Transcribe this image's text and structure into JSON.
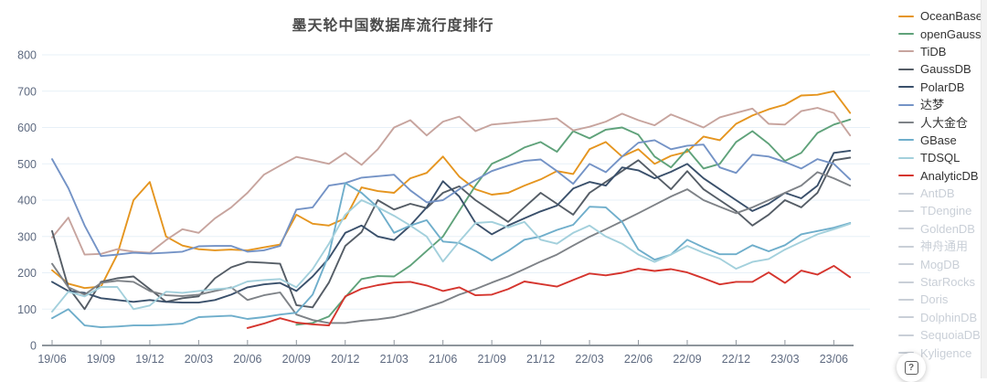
{
  "help": {
    "icon": "?"
  },
  "style": {
    "grid_color": "#e7f0f7",
    "axis_color": "#8e959c",
    "axis_label_color": "#5e6a80",
    "title_color": "#4a4a4a",
    "active_label_color": "#333333",
    "inactive_label_color": "#c9cfd7",
    "background": "#ffffff"
  },
  "legend": {
    "items": [
      {
        "label": "OceanBase",
        "slug": "oceanbase",
        "color": "#e5951f",
        "active": true
      },
      {
        "label": "openGauss",
        "slug": "opengauss",
        "color": "#5fa27a",
        "active": true
      },
      {
        "label": "TiDB",
        "slug": "tidb",
        "color": "#c7a49e",
        "active": true
      },
      {
        "label": "GaussDB",
        "slug": "gaussdb",
        "color": "#555d66",
        "active": true
      },
      {
        "label": "PolarDB",
        "slug": "polardb",
        "color": "#3a506b",
        "active": true
      },
      {
        "label": "达梦",
        "slug": "dameng",
        "color": "#7493c6",
        "active": true
      },
      {
        "label": "人大金仓",
        "slug": "renda-jincang",
        "color": "#7e8287",
        "active": true
      },
      {
        "label": "GBase",
        "slug": "gbase",
        "color": "#6faecb",
        "active": true
      },
      {
        "label": "TDSQL",
        "slug": "tdsql",
        "color": "#a3d0dc",
        "active": true
      },
      {
        "label": "AnalyticDB",
        "slug": "analyticdb",
        "color": "#d5352e",
        "active": true
      },
      {
        "label": "AntDB",
        "slug": "antdb",
        "color": "#c9cfd7",
        "active": false
      },
      {
        "label": "TDengine",
        "slug": "tdengine",
        "color": "#c9cfd7",
        "active": false
      },
      {
        "label": "GoldenDB",
        "slug": "goldendb",
        "color": "#c9cfd7",
        "active": false
      },
      {
        "label": "神舟通用",
        "slug": "shenzhou-tongyong",
        "color": "#c9cfd7",
        "active": false
      },
      {
        "label": "MogDB",
        "slug": "mogdb",
        "color": "#c9cfd7",
        "active": false
      },
      {
        "label": "StarRocks",
        "slug": "starrocks",
        "color": "#c9cfd7",
        "active": false
      },
      {
        "label": "Doris",
        "slug": "doris",
        "color": "#c9cfd7",
        "active": false
      },
      {
        "label": "DolphinDB",
        "slug": "dolphindb",
        "color": "#c9cfd7",
        "active": false
      },
      {
        "label": "SequoiaDB",
        "slug": "sequoiadb",
        "color": "#c9cfd7",
        "active": false
      },
      {
        "label": "Kyligence",
        "slug": "kyligence",
        "color": "#c9cfd7",
        "active": false
      }
    ]
  },
  "chart_data": {
    "type": "line",
    "title": "墨天轮中国数据库流行度排行",
    "xlabel": "",
    "ylabel": "",
    "ylim": [
      0,
      800
    ],
    "y_ticks": [
      0,
      100,
      200,
      300,
      400,
      500,
      600,
      700,
      800
    ],
    "grid": true,
    "legend_position": "right",
    "x_axis_ticks": [
      "19/06",
      "19/09",
      "19/12",
      "20/03",
      "20/06",
      "20/09",
      "20/12",
      "21/03",
      "21/06",
      "21/09",
      "21/12",
      "22/03",
      "22/06",
      "22/09",
      "22/12",
      "23/03",
      "23/06"
    ],
    "x": [
      "19/06",
      "19/07",
      "19/08",
      "19/09",
      "19/10",
      "19/11",
      "19/12",
      "20/01",
      "20/02",
      "20/03",
      "20/04",
      "20/05",
      "20/06",
      "20/07",
      "20/08",
      "20/09",
      "20/10",
      "20/11",
      "20/12",
      "21/01",
      "21/02",
      "21/03",
      "21/04",
      "21/05",
      "21/06",
      "21/07",
      "21/08",
      "21/09",
      "21/10",
      "21/11",
      "21/12",
      "22/01",
      "22/02",
      "22/03",
      "22/04",
      "22/05",
      "22/06",
      "22/07",
      "22/08",
      "22/09",
      "22/10",
      "22/11",
      "22/12",
      "23/01",
      "23/02",
      "23/03",
      "23/04",
      "23/05",
      "23/06",
      "23/07"
    ],
    "series": [
      {
        "name": "OceanBase",
        "slug": "oceanbase",
        "color": "#e5951f",
        "values": [
          207,
          170,
          158,
          162,
          250,
          400,
          450,
          300,
          275,
          265,
          262,
          264,
          262,
          270,
          278,
          360,
          335,
          330,
          350,
          435,
          425,
          420,
          460,
          475,
          520,
          465,
          430,
          415,
          420,
          440,
          457,
          480,
          472,
          540,
          560,
          520,
          540,
          500,
          522,
          533,
          575,
          565,
          610,
          633,
          650,
          663,
          688,
          690,
          700,
          640
        ]
      },
      {
        "name": "openGauss",
        "slug": "opengauss",
        "color": "#5fa27a",
        "values": [
          null,
          null,
          null,
          null,
          null,
          null,
          null,
          null,
          null,
          null,
          null,
          null,
          null,
          null,
          null,
          57,
          62,
          80,
          133,
          183,
          191,
          190,
          220,
          260,
          300,
          370,
          440,
          500,
          520,
          545,
          560,
          533,
          590,
          570,
          594,
          600,
          580,
          520,
          490,
          540,
          487,
          500,
          560,
          590,
          555,
          508,
          530,
          585,
          608,
          622
        ]
      },
      {
        "name": "TiDB",
        "slug": "tidb",
        "color": "#c7a49e",
        "values": [
          297,
          352,
          250,
          252,
          265,
          258,
          255,
          290,
          320,
          310,
          350,
          380,
          420,
          470,
          495,
          519,
          510,
          500,
          530,
          497,
          540,
          600,
          620,
          578,
          616,
          630,
          590,
          608,
          612,
          616,
          620,
          625,
          592,
          602,
          616,
          638,
          620,
          606,
          636,
          618,
          600,
          628,
          640,
          652,
          610,
          608,
          645,
          654,
          640,
          578
        ]
      },
      {
        "name": "GaussDB",
        "slug": "gaussdb",
        "color": "#555d66",
        "values": [
          315,
          160,
          100,
          175,
          185,
          190,
          155,
          120,
          130,
          135,
          185,
          215,
          230,
          228,
          225,
          111,
          105,
          173,
          274,
          312,
          400,
          374,
          390,
          378,
          420,
          438,
          400,
          370,
          340,
          380,
          420,
          390,
          360,
          420,
          450,
          480,
          510,
          470,
          430,
          480,
          430,
          400,
          370,
          330,
          360,
          400,
          380,
          420,
          510,
          517
        ]
      },
      {
        "name": "PolarDB",
        "slug": "polardb",
        "color": "#3a506b",
        "values": [
          175,
          150,
          145,
          130,
          125,
          120,
          125,
          120,
          118,
          118,
          125,
          140,
          160,
          168,
          172,
          150,
          190,
          240,
          310,
          330,
          300,
          290,
          330,
          380,
          452,
          410,
          337,
          306,
          330,
          350,
          369,
          385,
          432,
          450,
          440,
          490,
          482,
          460,
          478,
          500,
          460,
          430,
          400,
          370,
          390,
          420,
          405,
          440,
          530,
          536
        ]
      },
      {
        "name": "达梦",
        "slug": "dameng",
        "color": "#7493c6",
        "values": [
          513,
          433,
          330,
          246,
          250,
          255,
          253,
          255,
          258,
          273,
          274,
          274,
          258,
          262,
          274,
          374,
          380,
          440,
          447,
          462,
          466,
          470,
          427,
          394,
          400,
          430,
          455,
          480,
          495,
          508,
          512,
          480,
          445,
          500,
          477,
          520,
          558,
          565,
          540,
          550,
          553,
          490,
          475,
          525,
          520,
          505,
          487,
          513,
          500,
          457
        ]
      },
      {
        "name": "人大金仓",
        "slug": "renda-jincang",
        "color": "#7e8287",
        "values": [
          225,
          160,
          140,
          172,
          178,
          175,
          150,
          138,
          136,
          140,
          150,
          160,
          125,
          138,
          146,
          85,
          70,
          62,
          62,
          68,
          72,
          78,
          90,
          105,
          120,
          140,
          155,
          173,
          190,
          210,
          231,
          250,
          275,
          299,
          320,
          342,
          364,
          387,
          410,
          430,
          400,
          382,
          364,
          380,
          400,
          420,
          440,
          477,
          460,
          440
        ]
      },
      {
        "name": "GBase",
        "slug": "gbase",
        "color": "#6faecb",
        "values": [
          75,
          100,
          55,
          50,
          52,
          55,
          55,
          57,
          60,
          78,
          80,
          82,
          73,
          78,
          85,
          90,
          140,
          250,
          447,
          420,
          380,
          310,
          330,
          345,
          286,
          282,
          260,
          234,
          260,
          291,
          300,
          318,
          332,
          382,
          380,
          340,
          264,
          236,
          250,
          291,
          270,
          251,
          251,
          276,
          259,
          276,
          306,
          315,
          324,
          337
        ]
      },
      {
        "name": "TDSQL",
        "slug": "tdsql",
        "color": "#a3d0dc",
        "values": [
          93,
          148,
          135,
          161,
          161,
          100,
          110,
          148,
          145,
          150,
          155,
          158,
          176,
          180,
          183,
          160,
          210,
          280,
          360,
          400,
          380,
          357,
          330,
          300,
          231,
          286,
          337,
          340,
          325,
          340,
          291,
          280,
          310,
          330,
          300,
          280,
          250,
          230,
          250,
          274,
          255,
          239,
          211,
          230,
          238,
          264,
          285,
          306,
          320,
          335
        ]
      },
      {
        "name": "AnalyticDB",
        "slug": "analyticdb",
        "color": "#d5352e",
        "values": [
          null,
          null,
          null,
          null,
          null,
          null,
          null,
          null,
          null,
          null,
          null,
          null,
          48,
          60,
          75,
          63,
          58,
          55,
          135,
          156,
          166,
          173,
          175,
          165,
          150,
          160,
          138,
          140,
          155,
          176,
          169,
          162,
          180,
          198,
          193,
          200,
          211,
          205,
          210,
          201,
          185,
          168,
          175,
          175,
          201,
          172,
          206,
          195,
          219,
          188
        ]
      }
    ]
  }
}
